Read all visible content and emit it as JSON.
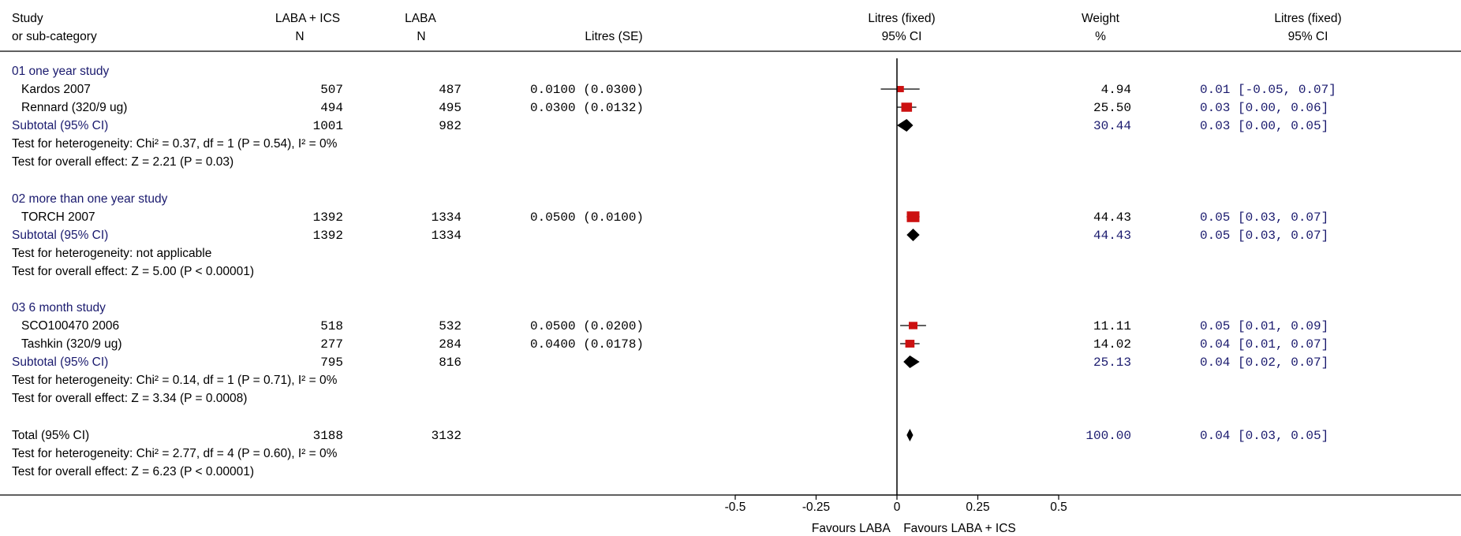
{
  "colors": {
    "navy": "#1a1a6e",
    "black": "#000000",
    "marker": "#cc1111",
    "diamond": "#000000"
  },
  "header": {
    "col1": [
      "Study",
      "or sub-category"
    ],
    "col2": [
      "LABA + ICS",
      "N"
    ],
    "col3": [
      "LABA",
      "N"
    ],
    "col4": "Litres (SE)",
    "col5": [
      "Litres (fixed)",
      "95% CI"
    ],
    "col6": [
      "Weight",
      "%"
    ],
    "col7": [
      "Litres (fixed)",
      "95% CI"
    ]
  },
  "groups": [
    {
      "title": "01 one year study",
      "studies": [
        {
          "name": "Kardos 2007",
          "n1": "507",
          "n2": "487",
          "se_text": "0.0100 (0.0300)",
          "weight": "4.94",
          "ci_text": "0.01 [-0.05, 0.07]"
        },
        {
          "name": "Rennard (320/9 ug)",
          "n1": "494",
          "n2": "495",
          "se_text": "0.0300 (0.0132)",
          "weight": "25.50",
          "ci_text": "0.03 [0.00, 0.06]"
        }
      ],
      "subtotal": {
        "label": "Subtotal (95% CI)",
        "n1": "1001",
        "n2": "982",
        "weight": "30.44",
        "ci_text": "0.03 [0.00, 0.05]"
      },
      "tests": [
        "Test for heterogeneity: Chi² = 0.37, df = 1 (P = 0.54), I² = 0%",
        "Test for overall effect: Z = 2.21 (P = 0.03)"
      ]
    },
    {
      "title": "02 more than one year study",
      "studies": [
        {
          "name": "TORCH 2007",
          "n1": "1392",
          "n2": "1334",
          "se_text": "0.0500 (0.0100)",
          "weight": "44.43",
          "ci_text": "0.05 [0.03, 0.07]"
        }
      ],
      "subtotal": {
        "label": "Subtotal (95% CI)",
        "n1": "1392",
        "n2": "1334",
        "weight": "44.43",
        "ci_text": "0.05 [0.03, 0.07]"
      },
      "tests": [
        "Test for heterogeneity: not applicable",
        "Test for overall effect: Z = 5.00 (P < 0.00001)"
      ]
    },
    {
      "title": "03 6 month study",
      "studies": [
        {
          "name": "SCO100470 2006",
          "n1": "518",
          "n2": "532",
          "se_text": "0.0500 (0.0200)",
          "weight": "11.11",
          "ci_text": "0.05 [0.01, 0.09]"
        },
        {
          "name": "Tashkin (320/9 ug)",
          "n1": "277",
          "n2": "284",
          "se_text": "0.0400 (0.0178)",
          "weight": "14.02",
          "ci_text": "0.04 [0.01, 0.07]"
        }
      ],
      "subtotal": {
        "label": "Subtotal (95% CI)",
        "n1": "795",
        "n2": "816",
        "weight": "25.13",
        "ci_text": "0.04 [0.02, 0.07]"
      },
      "tests": [
        "Test for heterogeneity: Chi² = 0.14, df = 1 (P = 0.71), I² = 0%",
        "Test for overall effect: Z = 3.34 (P = 0.0008)"
      ]
    }
  ],
  "total": {
    "label": "Total (95% CI)",
    "n1": "3188",
    "n2": "3132",
    "weight": "100.00",
    "ci_text": "0.04 [0.03, 0.05]",
    "tests": [
      "Test for heterogeneity: Chi² = 2.77, df = 4 (P = 0.60), I² = 0%",
      "Test for overall effect: Z = 6.23 (P < 0.00001)"
    ]
  },
  "axis": {
    "ticks": [
      -0.5,
      -0.25,
      0,
      0.25,
      0.5
    ],
    "tick_labels": [
      "-0.5",
      "-0.25",
      "0",
      "0.25",
      "0.5"
    ],
    "left_label": "Favours LABA",
    "right_label": "Favours LABA + ICS"
  },
  "chart_data": {
    "type": "forest",
    "xlim": [
      -0.5,
      0.5
    ],
    "series": [
      {
        "name": "Kardos 2007",
        "est": 0.01,
        "lo": -0.05,
        "hi": 0.07,
        "weight": 4.94,
        "kind": "study"
      },
      {
        "name": "Rennard (320/9 ug)",
        "est": 0.03,
        "lo": 0.0,
        "hi": 0.06,
        "weight": 25.5,
        "kind": "study"
      },
      {
        "name": "Subtotal (95% CI)",
        "est": 0.03,
        "lo": 0.0,
        "hi": 0.05,
        "weight": 30.44,
        "kind": "subtotal"
      },
      {
        "name": "TORCH 2007",
        "est": 0.05,
        "lo": 0.03,
        "hi": 0.07,
        "weight": 44.43,
        "kind": "study"
      },
      {
        "name": "Subtotal (95% CI)",
        "est": 0.05,
        "lo": 0.03,
        "hi": 0.07,
        "weight": 44.43,
        "kind": "subtotal"
      },
      {
        "name": "SCO100470 2006",
        "est": 0.05,
        "lo": 0.01,
        "hi": 0.09,
        "weight": 11.11,
        "kind": "study"
      },
      {
        "name": "Tashkin (320/9 ug)",
        "est": 0.04,
        "lo": 0.01,
        "hi": 0.07,
        "weight": 14.02,
        "kind": "study"
      },
      {
        "name": "Subtotal (95% CI)",
        "est": 0.04,
        "lo": 0.02,
        "hi": 0.07,
        "weight": 25.13,
        "kind": "subtotal"
      },
      {
        "name": "Total (95% CI)",
        "est": 0.04,
        "lo": 0.03,
        "hi": 0.05,
        "weight": 100.0,
        "kind": "total"
      }
    ]
  }
}
